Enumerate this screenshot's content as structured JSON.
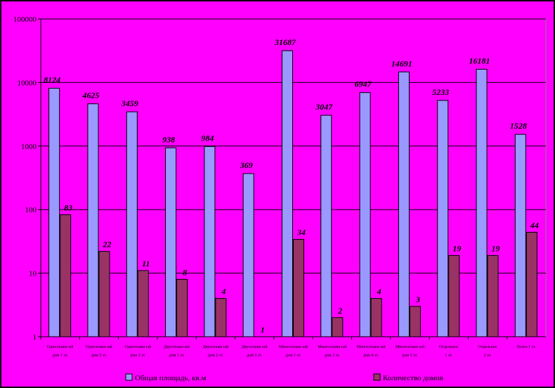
{
  "chart_data": {
    "type": "bar",
    "title": "",
    "xlabel": "",
    "ylabel": "",
    "yscale": "log",
    "ylim": [
      1,
      100000
    ],
    "yticks": [
      "1",
      "10",
      "100",
      "1000",
      "10000",
      "100000"
    ],
    "grid": true,
    "legend": "bottom",
    "categories": [
      [
        "Одноэтажн ый",
        "дом 1 эт."
      ],
      [
        "Одноэтажн ый",
        "дом 2 эт."
      ],
      [
        "Одноэтажн ый",
        "дом 3 эт."
      ],
      [
        "Двухэтажн ый",
        "дом 1 эт."
      ],
      [
        "Двухэтажн ый",
        "дом 2 эт."
      ],
      [
        "Двухэтажн ый",
        "дом 3 эт."
      ],
      [
        "Многоэтажн ый",
        "дом 1 эт."
      ],
      [
        "Многоэтажн ый",
        "дом 2 эт."
      ],
      [
        "Многоэтажн ый",
        "дом 4 эт."
      ],
      [
        "Многоэтажн ый",
        "дом 5 эт."
      ],
      [
        "Отдельное",
        "1 эт."
      ],
      [
        "Отдельное",
        "2 эт."
      ],
      [
        "Всего 1 эт."
      ]
    ],
    "series": [
      {
        "name": "Общая площадь, кв.м",
        "color": "#9999ff",
        "values": [
          8124,
          4625,
          3459,
          938,
          984,
          369,
          31687,
          3047,
          6947,
          14691,
          5233,
          16181,
          1528
        ],
        "labels": [
          "8124",
          "4625",
          "3459",
          "938",
          "984",
          "369",
          "31687",
          "3047",
          "6947",
          "14691",
          "5233",
          "16181",
          "1528"
        ]
      },
      {
        "name": "Количество домов",
        "color": "#993366",
        "values": [
          83,
          22,
          11,
          8,
          4,
          1,
          34,
          2,
          4,
          3,
          19,
          19,
          44
        ],
        "labels": [
          "83",
          "22",
          "11",
          "8",
          "4",
          "1",
          "34",
          "2",
          "4",
          "3",
          "19",
          "19",
          "44"
        ]
      }
    ],
    "colors": {
      "background": "#000000",
      "plot_area": "#ff00ff",
      "gridline": "#000000"
    }
  }
}
